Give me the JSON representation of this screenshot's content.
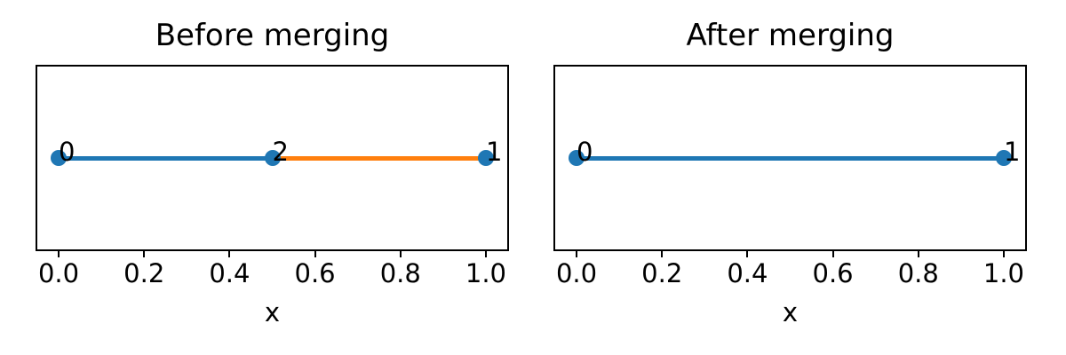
{
  "colors": {
    "line_blue": "#1f77b4",
    "line_orange": "#ff7f0e",
    "text": "#000000",
    "background": "#ffffff"
  },
  "chart_data": [
    {
      "type": "line",
      "title": "Before merging",
      "xlabel": "x",
      "xlim": [
        -0.05,
        1.05
      ],
      "grid": false,
      "legend": null,
      "y_constant": 0,
      "xticks": {
        "values": [
          0.0,
          0.2,
          0.4,
          0.6,
          0.8,
          1.0
        ],
        "labels": [
          "0.0",
          "0.2",
          "0.4",
          "0.6",
          "0.8",
          "1.0"
        ]
      },
      "segments": [
        {
          "x0": 0.0,
          "x1": 0.5,
          "color": "#1f77b4"
        },
        {
          "x0": 0.5,
          "x1": 1.0,
          "color": "#ff7f0e"
        }
      ],
      "nodes": [
        {
          "x": 0.0,
          "label": "0",
          "color": "#1f77b4"
        },
        {
          "x": 0.5,
          "label": "2",
          "color": "#1f77b4"
        },
        {
          "x": 1.0,
          "label": "1",
          "color": "#1f77b4"
        }
      ]
    },
    {
      "type": "line",
      "title": "After merging",
      "xlabel": "x",
      "xlim": [
        -0.05,
        1.05
      ],
      "grid": false,
      "legend": null,
      "y_constant": 0,
      "xticks": {
        "values": [
          0.0,
          0.2,
          0.4,
          0.6,
          0.8,
          1.0
        ],
        "labels": [
          "0.0",
          "0.2",
          "0.4",
          "0.6",
          "0.8",
          "1.0"
        ]
      },
      "segments": [
        {
          "x0": 0.0,
          "x1": 1.0,
          "color": "#1f77b4"
        }
      ],
      "nodes": [
        {
          "x": 0.0,
          "label": "0",
          "color": "#1f77b4"
        },
        {
          "x": 1.0,
          "label": "1",
          "color": "#1f77b4"
        }
      ]
    }
  ]
}
